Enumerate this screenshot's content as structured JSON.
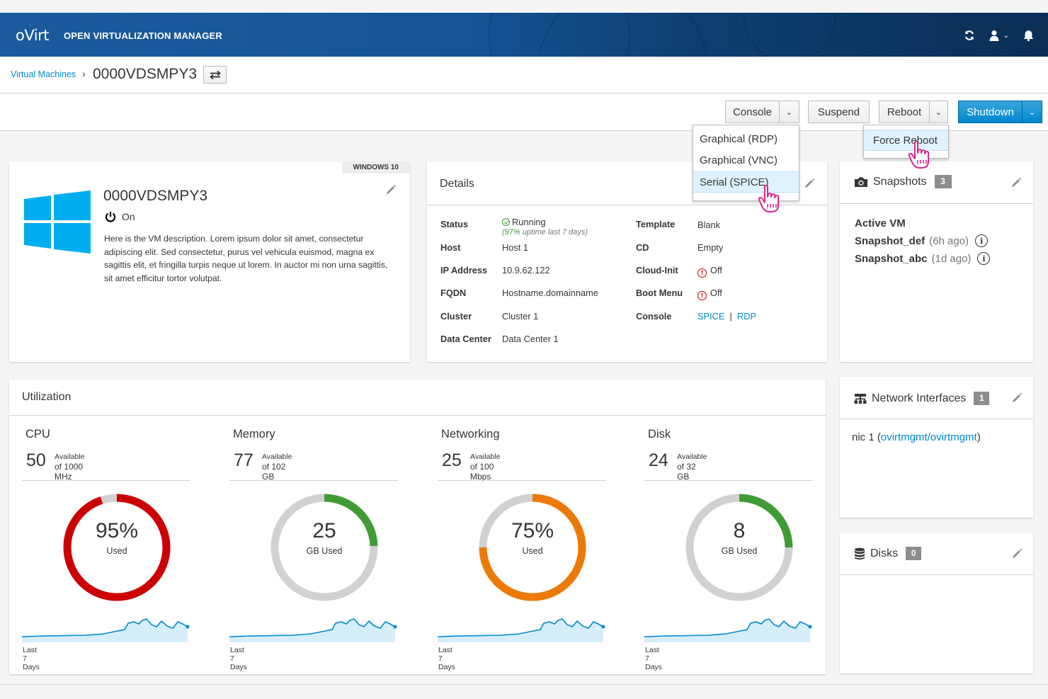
{
  "masthead": {
    "brand": "oVirt",
    "product": "OPEN VIRTUALIZATION MANAGER",
    "icons": [
      "refresh-icon",
      "user-icon",
      "bell-icon"
    ]
  },
  "breadcrumb": {
    "parent": "Virtual Machines",
    "separator": "›",
    "current": "0000VDSMPY3"
  },
  "actions": {
    "console": "Console",
    "suspend": "Suspend",
    "reboot": "Reboot",
    "shutdown": "Shutdown",
    "console_menu": [
      "Graphical (RDP)",
      "Graphical (VNC)",
      "Serial (SPICE)"
    ],
    "reboot_menu": [
      "Force Reboot"
    ]
  },
  "vm": {
    "os": "WINDOWS 10",
    "name": "0000VDSMPY3",
    "state": "On",
    "description": "Here is the VM description. Lorem ipsum dolor sit amet, consectetur adipiscing elit. Sed consectetur, purus vel vehicula euismod, magna ex sagittis elit, et fringilla turpis neque ut lorem. In auctor mi non urna sagittis, sit amet efficitur tortor volutpat."
  },
  "details": {
    "title": "Details",
    "status_label": "Status",
    "status_value": "Running",
    "uptime_pct": "97%",
    "uptime_rest": "uptime last 7 days)",
    "uptime_open": "(",
    "host_label": "Host",
    "host_value": "Host 1",
    "ip_label": "IP Address",
    "ip_value": "10.9.62.122",
    "fqdn_label": "FQDN",
    "fqdn_value": "Hostname.domainname",
    "cluster_label": "Cluster",
    "cluster_value": "Cluster 1",
    "dc_label": "Data Center",
    "dc_value": "Data Center 1",
    "template_label": "Template",
    "template_value": "Blank",
    "cd_label": "CD",
    "cd_value": "Empty",
    "cloudinit_label": "Cloud-Init",
    "cloudinit_value": "Off",
    "bootmenu_label": "Boot Menu",
    "bootmenu_value": "Off",
    "console_label": "Console",
    "console_spice": "SPICE",
    "console_sep": "|",
    "console_rdp": "RDP"
  },
  "snapshots": {
    "title": "Snapshots",
    "count": "3",
    "active": "Active VM",
    "items": [
      {
        "name": "Snapshot_def",
        "ago": "(6h ago)"
      },
      {
        "name": "Snapshot_abc",
        "ago": "(1d ago)"
      }
    ]
  },
  "utilization": {
    "title": "Utilization",
    "trend_label": "Last 7 Days",
    "available_label": "Available",
    "cpu": {
      "name": "CPU",
      "available": "50",
      "of": "of 1000 MHz",
      "center": "95%",
      "center_sub": "Used",
      "used_fraction": 0.95,
      "color": "#cc0000"
    },
    "memory": {
      "name": "Memory",
      "available": "77",
      "of": "of 102 GB",
      "center": "25",
      "center_sub": "GB Used",
      "used_fraction": 0.245,
      "color": "#3f9c35"
    },
    "network": {
      "name": "Networking",
      "available": "25",
      "of": "of 100 Mbps",
      "center": "75%",
      "center_sub": "Used",
      "used_fraction": 0.75,
      "color": "#ec7a08"
    },
    "disk": {
      "name": "Disk",
      "available": "24",
      "of": "of 32 GB",
      "center": "8",
      "center_sub": "GB Used",
      "used_fraction": 0.25,
      "color": "#3f9c35"
    }
  },
  "network_interfaces": {
    "title": "Network Interfaces",
    "count": "1",
    "nic_name": "nic 1",
    "nic_open": "(",
    "nic_link": "ovirtmgmt/ovirtmgmt",
    "nic_close": ")"
  },
  "disks": {
    "title": "Disks",
    "count": "0"
  },
  "colors": {
    "accent": "#0088ce",
    "running": "#3f9c35",
    "off": "#cc0000",
    "badge": "#8b8d8f"
  }
}
